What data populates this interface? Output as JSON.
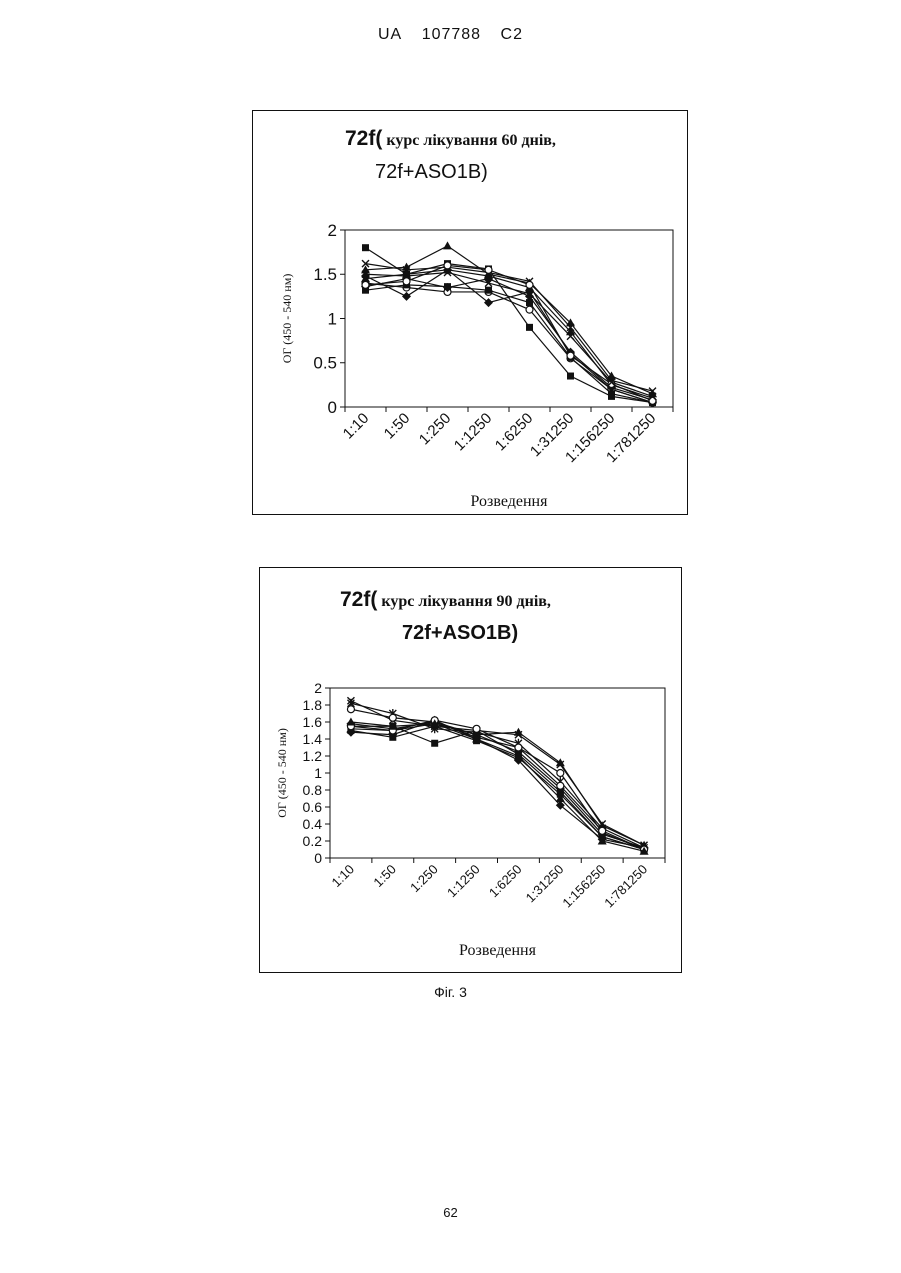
{
  "header": {
    "country": "UA",
    "number": "107788",
    "kind": "C2"
  },
  "figure_caption": "Фіг. 3",
  "page_number": "62",
  "colors": {
    "ink": "#111111",
    "background": "#ffffff"
  },
  "chart_data": [
    {
      "type": "line",
      "title_parts": {
        "lead": "72f(",
        "rest": " курс лікування 60 днів,",
        "line2": "72f+ASO1B)"
      },
      "title": "72f( курс лікування 60 днів, 72f+ASO1B)",
      "xlabel": "Розведення",
      "ylabel": "ОГ (450 - 540 нм)",
      "ylim": [
        0,
        2
      ],
      "yticks": [
        "0",
        "0.5",
        "1",
        "1.5",
        "2"
      ],
      "categories": [
        "1:10",
        "1:50",
        "1:250",
        "1:1250",
        "1:6250",
        "1:31250",
        "1:156250",
        "1:781250"
      ],
      "grid": false,
      "legend": "none",
      "series": [
        {
          "marker": "square",
          "values": [
            1.8,
            1.5,
            1.62,
            1.56,
            0.9,
            0.35,
            0.12,
            0.05
          ]
        },
        {
          "marker": "triangle",
          "values": [
            1.55,
            1.58,
            1.82,
            1.5,
            1.4,
            0.95,
            0.35,
            0.15
          ]
        },
        {
          "marker": "x",
          "values": [
            1.62,
            1.55,
            1.58,
            1.52,
            1.42,
            0.9,
            0.3,
            0.18
          ]
        },
        {
          "marker": "diamond",
          "values": [
            1.48,
            1.25,
            1.55,
            1.18,
            1.3,
            0.6,
            0.2,
            0.05
          ]
        },
        {
          "marker": "circle",
          "values": [
            1.4,
            1.35,
            1.3,
            1.3,
            1.1,
            0.55,
            0.2,
            0.05
          ]
        },
        {
          "marker": "square",
          "values": [
            1.32,
            1.38,
            1.36,
            1.32,
            1.18,
            0.56,
            0.15,
            0.05
          ]
        },
        {
          "marker": "diamond",
          "values": [
            1.36,
            1.45,
            1.35,
            1.45,
            1.25,
            0.62,
            0.22,
            0.08
          ]
        },
        {
          "marker": "triangle",
          "values": [
            1.45,
            1.5,
            1.55,
            1.48,
            1.35,
            0.85,
            0.25,
            0.1
          ]
        },
        {
          "marker": "circle",
          "values": [
            1.38,
            1.42,
            1.6,
            1.55,
            1.38,
            0.58,
            0.26,
            0.07
          ]
        },
        {
          "marker": "x",
          "values": [
            1.5,
            1.48,
            1.52,
            1.4,
            1.28,
            0.8,
            0.28,
            0.12
          ]
        }
      ]
    },
    {
      "type": "line",
      "title_parts": {
        "lead": "72f(",
        "rest": " курс лікування 90 днів,",
        "line2": "72f+ASO1B)"
      },
      "title": "72f( курс лікування 90 днів, 72f+ASO1B)",
      "xlabel": "Розведення",
      "ylabel": "ОГ (450 - 540 нм)",
      "ylim": [
        0,
        2
      ],
      "yticks": [
        "0",
        "0.2",
        "0.4",
        "0.6",
        "0.8",
        "1",
        "1.2",
        "1.4",
        "1.6",
        "1.8",
        "2"
      ],
      "categories": [
        "1:10",
        "1:50",
        "1:250",
        "1:1250",
        "1:6250",
        "1:31250",
        "1:156250",
        "1:781250"
      ],
      "grid": false,
      "legend": "none",
      "series": [
        {
          "marker": "x",
          "values": [
            1.85,
            1.62,
            1.55,
            1.5,
            1.45,
            1.1,
            0.4,
            0.15
          ]
        },
        {
          "marker": "star",
          "values": [
            1.82,
            1.7,
            1.52,
            1.48,
            1.35,
            0.9,
            0.35,
            0.12
          ]
        },
        {
          "marker": "circle",
          "values": [
            1.75,
            1.65,
            1.6,
            1.42,
            1.3,
            1.0,
            0.3,
            0.1
          ]
        },
        {
          "marker": "square",
          "values": [
            1.55,
            1.55,
            1.35,
            1.5,
            1.22,
            0.78,
            0.25,
            0.1
          ]
        },
        {
          "marker": "diamond",
          "values": [
            1.48,
            1.45,
            1.62,
            1.4,
            1.15,
            0.62,
            0.22,
            0.12
          ]
        },
        {
          "marker": "triangle",
          "values": [
            1.52,
            1.5,
            1.58,
            1.45,
            1.48,
            1.12,
            0.38,
            0.15
          ]
        },
        {
          "marker": "square",
          "values": [
            1.5,
            1.42,
            1.55,
            1.38,
            1.18,
            0.75,
            0.25,
            0.1
          ]
        },
        {
          "marker": "diamond",
          "values": [
            1.58,
            1.52,
            1.6,
            1.45,
            1.25,
            0.82,
            0.28,
            0.12
          ]
        },
        {
          "marker": "circle",
          "values": [
            1.55,
            1.5,
            1.62,
            1.52,
            1.3,
            0.85,
            0.32,
            0.1
          ]
        },
        {
          "marker": "triangle",
          "values": [
            1.6,
            1.55,
            1.58,
            1.4,
            1.2,
            0.7,
            0.2,
            0.08
          ]
        }
      ]
    }
  ]
}
